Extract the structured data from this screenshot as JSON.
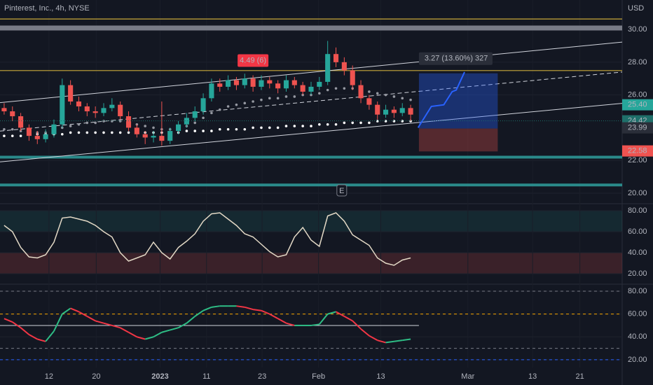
{
  "chart_data": [
    {
      "type": "candlestick",
      "title": "Pinterest, Inc., 4h, NYSE",
      "currency": "USD",
      "ylim": [
        19.4,
        31.8
      ],
      "yticks": [
        {
          "value": 20,
          "label": "20.00"
        },
        {
          "value": 22,
          "label": "22.00"
        },
        {
          "value": 26,
          "label": "26.00"
        },
        {
          "value": 28,
          "label": "28.00"
        },
        {
          "value": 30,
          "label": "30.00"
        }
      ],
      "xlim": [
        -0.5,
        74.5
      ],
      "xticks": [
        {
          "value": 5.4,
          "label": "12"
        },
        {
          "value": 11.1,
          "label": "20"
        },
        {
          "value": 18.8,
          "label": "2023"
        },
        {
          "value": 24.4,
          "label": "11"
        },
        {
          "value": 31.1,
          "label": "23"
        },
        {
          "value": 37.9,
          "label": "Feb"
        },
        {
          "value": 45.4,
          "label": "13"
        },
        {
          "value": 55.9,
          "label": "Mar"
        },
        {
          "value": 63.7,
          "label": "13"
        },
        {
          "value": 69.4,
          "label": "21"
        }
      ],
      "up_color": "#26a69a",
      "down_color": "#ef5350",
      "open": [
        25.2,
        25.0,
        24.7,
        24.0,
        23.5,
        23.3,
        23.6,
        24.2,
        26.6,
        25.6,
        25.3,
        25.0,
        24.9,
        25.2,
        25.4,
        24.7,
        24.0,
        23.6,
        23.4,
        23.5,
        23.2,
        23.8,
        24.2,
        24.6,
        25.0,
        25.8,
        26.7,
        26.5,
        26.9,
        26.6,
        27.0,
        26.5,
        26.9,
        26.7,
        26.4,
        26.9,
        26.6,
        26.2,
        26.5,
        26.8,
        28.5,
        28.0,
        27.5,
        26.6,
        25.8,
        25.4,
        24.8,
        25.1,
        24.9,
        25.2
      ],
      "high": [
        25.5,
        25.3,
        24.9,
        24.2,
        23.8,
        23.9,
        24.5,
        27.0,
        26.9,
        25.9,
        25.5,
        25.3,
        25.5,
        25.8,
        25.6,
        25.0,
        24.2,
        23.8,
        23.8,
        25.6,
        24.0,
        24.4,
        24.9,
        25.3,
        26.1,
        27.0,
        27.0,
        27.2,
        27.1,
        27.3,
        27.2,
        27.2,
        27.1,
        26.9,
        27.2,
        27.1,
        26.8,
        26.8,
        27.1,
        29.3,
        28.9,
        28.3,
        27.8,
        26.9,
        26.0,
        25.6,
        25.4,
        25.3,
        25.5,
        25.4
      ],
      "low": [
        24.8,
        24.4,
        23.8,
        23.2,
        23.0,
        23.1,
        23.4,
        24.0,
        25.4,
        25.0,
        24.7,
        24.6,
        24.7,
        25.0,
        24.5,
        23.8,
        23.4,
        23.0,
        23.1,
        22.9,
        23.0,
        23.6,
        24.0,
        24.4,
        24.8,
        25.6,
        26.2,
        26.3,
        26.3,
        26.4,
        26.2,
        26.3,
        26.4,
        26.1,
        26.2,
        26.4,
        26.0,
        26.0,
        26.3,
        26.6,
        27.7,
        27.2,
        26.3,
        25.5,
        25.1,
        24.5,
        24.6,
        24.6,
        24.7,
        24.4
      ],
      "close": [
        25.0,
        24.7,
        24.0,
        23.5,
        23.3,
        23.6,
        24.2,
        26.6,
        25.6,
        25.3,
        25.0,
        24.9,
        25.2,
        25.4,
        24.7,
        24.0,
        23.6,
        23.4,
        23.5,
        23.2,
        23.8,
        24.2,
        24.6,
        25.0,
        25.8,
        26.7,
        26.5,
        26.9,
        26.6,
        27.0,
        26.5,
        26.9,
        26.7,
        26.4,
        26.9,
        26.6,
        26.2,
        26.5,
        26.8,
        28.5,
        28.0,
        27.5,
        26.6,
        25.8,
        25.4,
        24.8,
        25.1,
        24.9,
        25.2,
        24.8
      ],
      "moving_averages": [
        {
          "color": "#9598a1",
          "values": [
            23.9,
            23.9,
            23.8,
            23.8,
            23.7,
            23.7,
            23.8,
            24.0,
            24.1,
            24.2,
            24.3,
            24.3,
            24.4,
            24.4,
            24.4,
            24.3,
            24.2,
            24.1,
            24.0,
            23.9,
            23.9,
            24.0,
            24.1,
            24.3,
            24.6,
            24.9,
            25.1,
            25.3,
            25.4,
            25.5,
            25.6,
            25.7,
            25.8,
            25.8,
            25.9,
            25.9,
            26.0,
            26.0,
            26.1,
            26.3,
            26.4,
            26.4,
            26.4,
            26.3,
            26.2,
            26.1,
            26.0,
            25.9,
            25.8,
            25.7
          ]
        },
        {
          "color": "#ffffff",
          "values": [
            23.5,
            23.5,
            23.5,
            23.6,
            23.6,
            23.6,
            23.6,
            23.6,
            23.7,
            23.7,
            23.7,
            23.7,
            23.7,
            23.7,
            23.7,
            23.7,
            23.7,
            23.7,
            23.7,
            23.7,
            23.7,
            23.7,
            23.8,
            23.8,
            23.8,
            23.8,
            23.9,
            23.9,
            23.9,
            23.9,
            24.0,
            24.0,
            24.0,
            24.0,
            24.1,
            24.1,
            24.1,
            24.1,
            24.2,
            24.2,
            24.2,
            24.3,
            24.3,
            24.3,
            24.3,
            24.4,
            24.4,
            24.4,
            24.4,
            24.4
          ]
        }
      ],
      "hlines": [
        {
          "value": 30.64,
          "color": "#c9a93a"
        },
        {
          "value": 30.09,
          "color": "#787b86"
        },
        {
          "value": 27.49,
          "color": "#c9a93a"
        },
        {
          "value": 22.2,
          "color": "#2a8a8a"
        },
        {
          "value": 20.5,
          "color": "#2a8a8a"
        }
      ],
      "trendlines": [
        {
          "x": [
            -0.5,
            74.5
          ],
          "y": [
            25.53,
            29.23
          ],
          "dashed": false
        },
        {
          "x": [
            -0.5,
            74.5
          ],
          "y": [
            23.79,
            27.4
          ],
          "dashed": true
        },
        {
          "x": [
            -0.5,
            74.5
          ],
          "y": [
            21.91,
            25.49
          ],
          "dashed": false
        }
      ],
      "position": {
        "x": [
          50,
          59.5
        ],
        "target": 27.32,
        "entry": 23.95,
        "stop": 22.55,
        "label": "3.27 (13.60%) 327"
      },
      "projection": {
        "x": [
          49.9,
          51.5,
          53,
          54,
          54.5,
          55.5
        ],
        "y": [
          24.0,
          25.3,
          25.4,
          26.2,
          26.3,
          27.4
        ],
        "color": "#2962ff"
      },
      "annotation": {
        "x": 30,
        "y": 28.1,
        "text": "4.49 (6)"
      },
      "events": [
        {
          "x": 40.7,
          "label": "E"
        }
      ],
      "price_tags": [
        {
          "value": 25.4,
          "label": "25.40",
          "color": "#26a69a"
        },
        {
          "value": 24.42,
          "label": "24.42",
          "color": "#1f6f6a"
        },
        {
          "value": 23.99,
          "label": "23.99",
          "color": "#2a2e39"
        },
        {
          "value": 22.58,
          "label": "22.58",
          "color": "#ef5350"
        }
      ]
    },
    {
      "type": "line",
      "ylim": [
        10.7,
        86
      ],
      "yticks": [
        {
          "value": 20,
          "label": "20.00"
        },
        {
          "value": 40,
          "label": "40.00"
        },
        {
          "value": 60,
          "label": "60.00"
        },
        {
          "value": 80,
          "label": "80.00"
        }
      ],
      "zones": [
        {
          "from": 60,
          "to": 80,
          "color": "rgba(38,166,154,0.13)"
        },
        {
          "from": 20,
          "to": 40,
          "color": "rgba(239,83,80,0.18)"
        }
      ],
      "color": "#e3d9c6",
      "values": [
        66,
        60,
        45,
        36,
        35,
        38,
        50,
        73,
        74,
        72,
        70,
        66,
        60,
        55,
        40,
        32,
        35,
        38,
        50,
        40,
        34,
        45,
        51,
        58,
        70,
        77,
        78,
        72,
        66,
        58,
        55,
        48,
        41,
        36,
        38,
        55,
        64,
        52,
        46,
        75,
        78,
        70,
        57,
        52,
        47,
        35,
        30,
        28,
        33,
        35
      ]
    },
    {
      "type": "line",
      "ylim": [
        13.2,
        85.5
      ],
      "yticks": [
        {
          "value": 20,
          "label": "20.00"
        },
        {
          "value": 40,
          "label": "40.00"
        },
        {
          "value": 60,
          "label": "60.00"
        },
        {
          "value": 80,
          "label": "80.00"
        }
      ],
      "levels": [
        {
          "value": 80,
          "color": "#787b86"
        },
        {
          "value": 60,
          "color": "#f7a600"
        },
        {
          "value": 50,
          "color": "#d1d4dc"
        },
        {
          "value": 30,
          "color": "#787b86"
        },
        {
          "value": 20,
          "color": "#2962ff"
        }
      ],
      "up_color": "#2ebd85",
      "down_color": "#f23645",
      "values": [
        56,
        53,
        48,
        42,
        38,
        36,
        45,
        60,
        65,
        62,
        58,
        54,
        52,
        50,
        48,
        44,
        40,
        38,
        40,
        44,
        46,
        48,
        52,
        58,
        63,
        66,
        67,
        67,
        67,
        66,
        64,
        63,
        60,
        56,
        52,
        50,
        50,
        50,
        51,
        60,
        62,
        58,
        54,
        47,
        41,
        37,
        35,
        36,
        37,
        38
      ]
    }
  ]
}
